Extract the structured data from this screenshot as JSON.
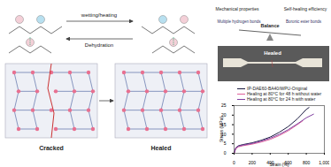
{
  "diagram": {
    "reaction": {
      "forward": "wetting/heating",
      "backward": "Dehydration"
    },
    "network": {
      "cracked": "Cracked",
      "healed": "Healed"
    },
    "balance": {
      "left": "Mechanical properties",
      "right": "Self-healing efficiency",
      "center": "Balance",
      "bond_left": "Multiple hydrogen bonds",
      "bond_right": "Boronic ester bonds"
    },
    "photo": {
      "label": "Healed"
    }
  },
  "chart_data": {
    "type": "line",
    "x_label": "Strain (%)",
    "y_label": "Stress (MPa)",
    "xlim": [
      0,
      1000
    ],
    "xticks": [
      0,
      200,
      400,
      600,
      800,
      1000
    ],
    "ylim": [
      0,
      25
    ],
    "yticks": [
      0,
      5,
      10,
      15,
      20,
      25
    ],
    "grid": false,
    "legend": "top-left",
    "series": [
      {
        "name": "IP-DAE60-BA40/WPU-Original",
        "color": "#1a1a40",
        "x": [
          0,
          20,
          50,
          100,
          200,
          300,
          400,
          500,
          600,
          700,
          800,
          830
        ],
        "values": [
          0,
          3,
          4,
          4.6,
          5.5,
          6.8,
          8.5,
          11,
          14,
          18,
          23,
          24
        ]
      },
      {
        "name": "Healing at 80°C for 48 h without water",
        "color": "#e0609a",
        "x": [
          0,
          20,
          50,
          100,
          200,
          300,
          400,
          500,
          600,
          700,
          760
        ],
        "values": [
          0,
          2.5,
          3.4,
          4,
          4.8,
          5.9,
          7.3,
          9.3,
          11.8,
          15,
          17
        ]
      },
      {
        "name": "Healing at 80°C for 24 h with water",
        "color": "#8040a0",
        "x": [
          0,
          20,
          50,
          100,
          200,
          300,
          400,
          500,
          600,
          700,
          800,
          880
        ],
        "values": [
          0,
          2.8,
          3.8,
          4.3,
          5.2,
          6.4,
          7.9,
          9.9,
          12.4,
          15.4,
          18.6,
          20.5
        ]
      }
    ]
  }
}
